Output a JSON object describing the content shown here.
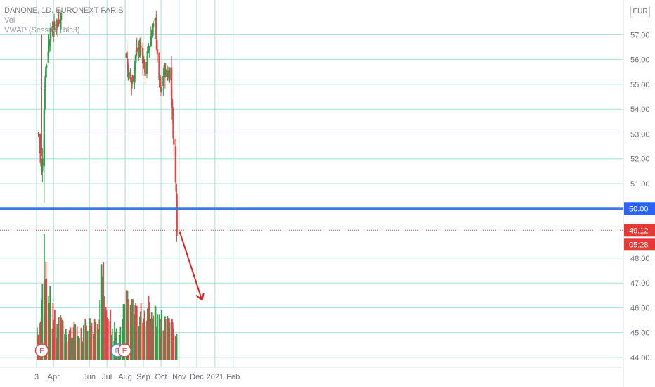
{
  "legend": {
    "title": "DANONE, 1D, EURONEXT PARIS",
    "line2": "Vol",
    "line3": "VWAP (Session, hlc3)"
  },
  "currency_button": "EUR",
  "colors": {
    "up": "#26a69a",
    "up_candle": "#2e9e4a",
    "down": "#e04646",
    "grid": "#a8e0d4",
    "support_line": "#3a7be0",
    "arrow": "#e02020",
    "axis_text": "#6a6e76",
    "tag_blue": "#2962ff",
    "tag_red": "#e53935"
  },
  "chart_data": {
    "type": "candlestick",
    "symbol": "DANONE",
    "interval": "1D",
    "exchange": "EURONEXT PARIS",
    "price_axis": {
      "ylim": [
        43.6,
        58.4
      ],
      "ticks": [
        44.0,
        45.0,
        46.0,
        47.0,
        48.0,
        50.0,
        51.0,
        52.0,
        53.0,
        54.0,
        55.0,
        56.0,
        57.0
      ],
      "tick_labels": [
        "44.00",
        "45.00",
        "46.00",
        "47.00",
        "48.00",
        "50.00",
        "51.00",
        "52.00",
        "53.00",
        "54.00",
        "55.00",
        "56.00",
        "57.00"
      ]
    },
    "time_axis": {
      "labels": [
        {
          "label": "3",
          "date": "2020-03-03"
        },
        {
          "label": "Apr",
          "date": "2020-04-01"
        },
        {
          "label": "Jun",
          "date": "2020-06-01"
        },
        {
          "label": "Jul",
          "date": "2020-07-01"
        },
        {
          "label": "Aug",
          "date": "2020-08-01"
        },
        {
          "label": "Sep",
          "date": "2020-09-01"
        },
        {
          "label": "Oct",
          "date": "2020-10-01"
        },
        {
          "label": "Nov",
          "date": "2020-11-01"
        },
        {
          "label": "Dec",
          "date": "2020-12-01"
        },
        {
          "label": "2021",
          "date": "2021-01-01"
        },
        {
          "label": "Feb",
          "date": "2021-02-01"
        }
      ]
    },
    "close_path": [
      {
        "date": "2020-03-06",
        "close": 53.0
      },
      {
        "date": "2020-03-12",
        "close": 51.5
      },
      {
        "date": "2020-03-18",
        "close": 55.5
      },
      {
        "date": "2020-03-26",
        "close": 57.0
      },
      {
        "date": "2020-04-07",
        "close": 57.5
      },
      {
        "date": "2020-04-14",
        "close": 57.8
      },
      {
        "date": "2020-08-01",
        "close": 57.0
      },
      {
        "date": "2020-08-06",
        "close": 55.5
      },
      {
        "date": "2020-08-12",
        "close": 55.0
      },
      {
        "date": "2020-08-20",
        "close": 56.3
      },
      {
        "date": "2020-08-28",
        "close": 56.5
      },
      {
        "date": "2020-09-04",
        "close": 55.5
      },
      {
        "date": "2020-09-10",
        "close": 56.5
      },
      {
        "date": "2020-09-17",
        "close": 57.3
      },
      {
        "date": "2020-09-22",
        "close": 57.5
      },
      {
        "date": "2020-09-25",
        "close": 56.0
      },
      {
        "date": "2020-10-01",
        "close": 54.6
      },
      {
        "date": "2020-10-06",
        "close": 55.6
      },
      {
        "date": "2020-10-12",
        "close": 55.3
      },
      {
        "date": "2020-10-16",
        "close": 55.6
      },
      {
        "date": "2020-10-20",
        "close": 54.2
      },
      {
        "date": "2020-10-23",
        "close": 52.5
      },
      {
        "date": "2020-10-26",
        "close": 51.0
      },
      {
        "date": "2020-10-27",
        "close": 50.9
      },
      {
        "date": "2020-10-28",
        "close": 49.12
      }
    ],
    "volume_daily": [
      {
        "date": "2020-03-04",
        "v": 0.65
      },
      {
        "date": "2020-03-10",
        "v": 1.2
      },
      {
        "date": "2020-03-13",
        "v": 1.6
      },
      {
        "date": "2020-03-16",
        "v": 1.9
      },
      {
        "date": "2020-03-18",
        "v": 1.7
      },
      {
        "date": "2020-03-20",
        "v": 1.5
      },
      {
        "date": "2020-03-24",
        "v": 1.3
      },
      {
        "date": "2020-04-01",
        "v": 0.9
      },
      {
        "date": "2020-04-15",
        "v": 0.6
      },
      {
        "date": "2020-06-17",
        "v": 0.6
      },
      {
        "date": "2020-06-22",
        "v": 1.5
      },
      {
        "date": "2020-07-20",
        "v": 0.35
      },
      {
        "date": "2020-08-01",
        "v": 1.0
      },
      {
        "date": "2020-09-18",
        "v": 0.9
      },
      {
        "date": "2020-10-21",
        "v": 0.6
      },
      {
        "date": "2020-10-28",
        "v": 0.45
      }
    ],
    "horizontal_line": {
      "price": 50.0,
      "label": "50.00"
    },
    "last_price": {
      "value": 49.12,
      "label": "49.12",
      "countdown": "05:28"
    },
    "event_markers": [
      {
        "label": "E",
        "date": "2020-03-12"
      },
      {
        "label": "D",
        "date": "2020-07-19"
      },
      {
        "label": "E",
        "date": "2020-07-31"
      }
    ],
    "arrow_annotation": {
      "from": {
        "date": "2020-11-02",
        "price": 49.05
      },
      "to": {
        "date": "2020-12-10",
        "price": 46.3
      }
    },
    "grid": true
  }
}
